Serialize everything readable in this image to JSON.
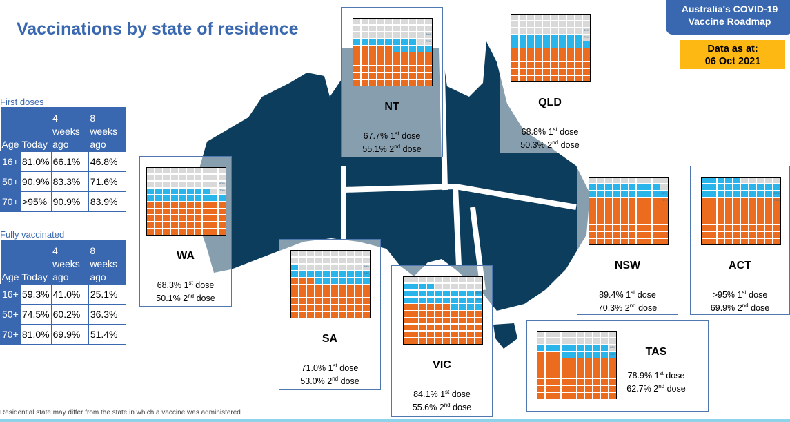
{
  "title": "Vaccinations by state of residence",
  "badge": {
    "line1": "Australia's COVID-19",
    "line2": "Vaccine Roadmap"
  },
  "date": {
    "line1": "Data as at:",
    "line2": "06 Oct 2021"
  },
  "colors": {
    "second_dose": "#ec6c1f",
    "first_dose": "#29b5ea",
    "unvaccinated": "#d9d9d9",
    "map": "#0d3d5c",
    "accent": "#3a68b0",
    "date_badge": "#fdb813"
  },
  "first_doses": {
    "label": "First doses",
    "headers": [
      "Age",
      "Today",
      "4 weeks ago",
      "8 weeks ago"
    ],
    "rows": [
      [
        "16+",
        "81.0%",
        "66.1%",
        "46.8%"
      ],
      [
        "50+",
        "90.9%",
        "83.3%",
        "71.6%"
      ],
      [
        "70+",
        ">95%",
        "90.9%",
        "83.9%"
      ]
    ]
  },
  "fully_vaccinated": {
    "label": "Fully vaccinated",
    "headers": [
      "Age",
      "Today",
      "4 weeks ago",
      "8 weeks ago"
    ],
    "rows": [
      [
        "16+",
        "59.3%",
        "41.0%",
        "25.1%"
      ],
      [
        "50+",
        "74.5%",
        "60.2%",
        "36.3%"
      ],
      [
        "70+",
        "81.0%",
        "69.9%",
        "51.4%"
      ]
    ]
  },
  "markers": [
    "80%",
    "70%"
  ],
  "dose1_suffix": "1st dose",
  "dose2_suffix": "2nd dose",
  "states": [
    {
      "name": "NT",
      "first": "67.7%",
      "second": "55.1%",
      "first_pct": 67.7,
      "second_pct": 55.1
    },
    {
      "name": "QLD",
      "first": "68.8%",
      "second": "50.3%",
      "first_pct": 68.8,
      "second_pct": 50.3
    },
    {
      "name": "WA",
      "first": "68.3%",
      "second": "50.1%",
      "first_pct": 68.3,
      "second_pct": 50.1
    },
    {
      "name": "SA",
      "first": "71.0%",
      "second": "53.0%",
      "first_pct": 71.0,
      "second_pct": 53.0
    },
    {
      "name": "VIC",
      "first": "84.1%",
      "second": "55.6%",
      "first_pct": 84.1,
      "second_pct": 55.6
    },
    {
      "name": "NSW",
      "first": "89.4%",
      "second": "70.3%",
      "first_pct": 89.4,
      "second_pct": 70.3
    },
    {
      "name": "ACT",
      "first": ">95%",
      "second": "69.9%",
      "first_pct": 95,
      "second_pct": 69.9
    },
    {
      "name": "TAS",
      "first": "78.9%",
      "second": "62.7%",
      "first_pct": 78.9,
      "second_pct": 62.7
    }
  ],
  "footnote": "Residential state may differ from the state in which a vaccine was administered"
}
